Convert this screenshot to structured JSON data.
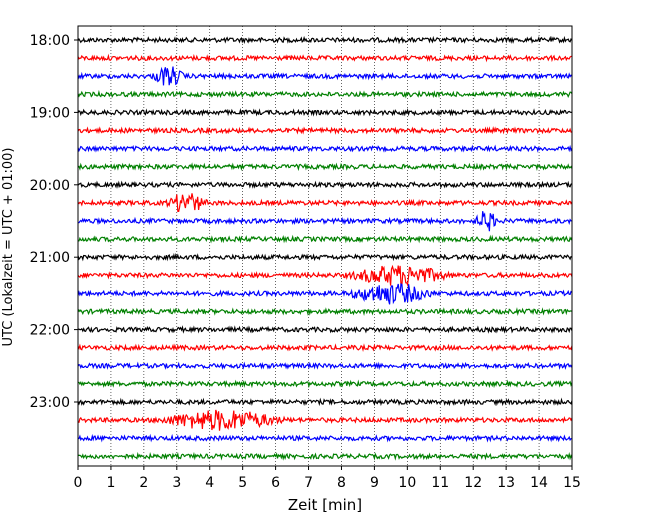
{
  "chart_data": {
    "type": "line",
    "title": "",
    "xlabel": "Zeit  [min]",
    "ylabel": "UTC (Lokalzeit = UTC + 01:00)",
    "xlim": [
      0,
      15
    ],
    "x_ticks": [
      "0",
      "1",
      "2",
      "3",
      "4",
      "5",
      "6",
      "7",
      "8",
      "9",
      "10",
      "11",
      "12",
      "13",
      "14",
      "15"
    ],
    "y_tick_labels": [
      "18:00",
      "19:00",
      "20:00",
      "21:00",
      "22:00",
      "23:00"
    ],
    "grid": "vertical dotted lines at each minute",
    "traces_per_hour": 4,
    "trace_colors": [
      "#000000",
      "#ff0000",
      "#0000ff",
      "#008000"
    ],
    "rows": [
      {
        "time": "18:00",
        "color": "#000000"
      },
      {
        "time": "18:15",
        "color": "#ff0000"
      },
      {
        "time": "18:30",
        "color": "#0000ff"
      },
      {
        "time": "18:45",
        "color": "#008000"
      },
      {
        "time": "19:00",
        "color": "#000000"
      },
      {
        "time": "19:15",
        "color": "#ff0000"
      },
      {
        "time": "19:30",
        "color": "#0000ff"
      },
      {
        "time": "19:45",
        "color": "#008000"
      },
      {
        "time": "20:00",
        "color": "#000000"
      },
      {
        "time": "20:15",
        "color": "#ff0000"
      },
      {
        "time": "20:30",
        "color": "#0000ff"
      },
      {
        "time": "20:45",
        "color": "#008000"
      },
      {
        "time": "21:00",
        "color": "#000000"
      },
      {
        "time": "21:15",
        "color": "#ff0000"
      },
      {
        "time": "21:30",
        "color": "#0000ff"
      },
      {
        "time": "21:45",
        "color": "#008000"
      },
      {
        "time": "22:00",
        "color": "#000000"
      },
      {
        "time": "22:15",
        "color": "#ff0000"
      },
      {
        "time": "22:30",
        "color": "#0000ff"
      },
      {
        "time": "22:45",
        "color": "#008000"
      },
      {
        "time": "23:00",
        "color": "#000000"
      },
      {
        "time": "23:15",
        "color": "#ff0000"
      },
      {
        "time": "23:30",
        "color": "#0000ff"
      },
      {
        "time": "23:45",
        "color": "#008000"
      }
    ],
    "events": [
      {
        "time": "18:30",
        "start_min": 2.2,
        "end_min": 3.3
      },
      {
        "time": "20:15",
        "start_min": 2.6,
        "end_min": 4.0
      },
      {
        "time": "20:30",
        "start_min": 12.0,
        "end_min": 12.8
      },
      {
        "time": "21:15",
        "start_min": 8.0,
        "end_min": 11.5
      },
      {
        "time": "21:30",
        "start_min": 8.0,
        "end_min": 11.0
      },
      {
        "time": "23:15",
        "start_min": 2.2,
        "end_min": 6.5
      }
    ]
  }
}
